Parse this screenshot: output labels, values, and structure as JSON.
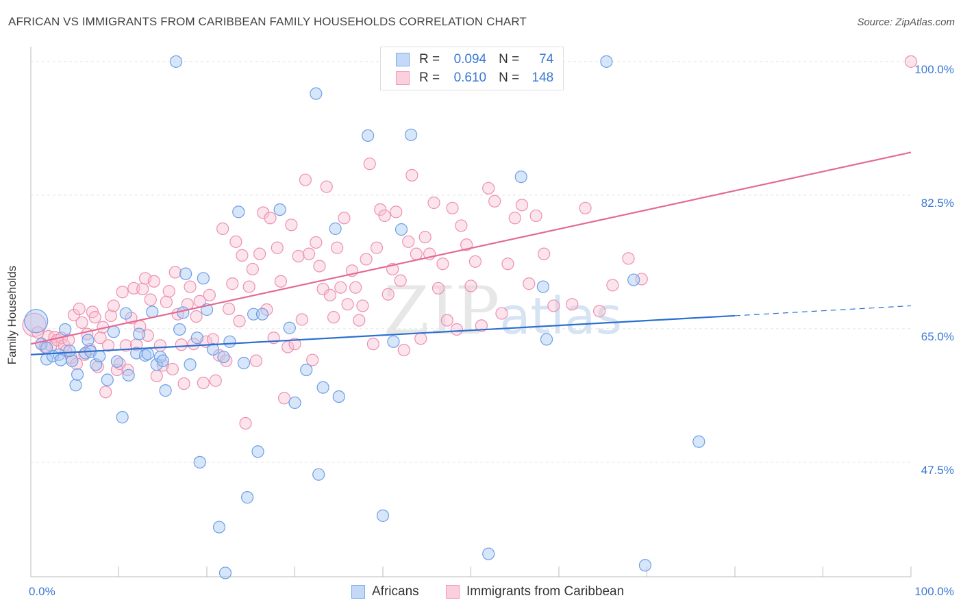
{
  "title": "AFRICAN VS IMMIGRANTS FROM CARIBBEAN FAMILY HOUSEHOLDS CORRELATION CHART",
  "source": "Source: ZipAtlas.com",
  "watermark": {
    "zip": "ZIP",
    "atlas": "atlas"
  },
  "legend": {
    "rows": [
      {
        "r_label": "R =",
        "r_value": "0.094",
        "n_label": "N =",
        "n_value": "74",
        "color": "#7aaaf0"
      },
      {
        "r_label": "R =",
        "r_value": "0.610",
        "n_label": "N =",
        "n_value": "148",
        "color": "#f29ab8"
      }
    ]
  },
  "bottom_legend": [
    {
      "label": "Africans",
      "color": "#7aaaf0"
    },
    {
      "label": "Immigrants from Caribbean",
      "color": "#f29ab8"
    }
  ],
  "colors": {
    "africans_fill": "#a9c8f5",
    "africans_stroke": "#6b9fe6",
    "africans_line": "#2a6fd1",
    "carib_fill": "#f7c3d5",
    "carib_stroke": "#ee8fb0",
    "carib_line": "#e46a93",
    "tick_label": "#3a78d4",
    "grid": "#e3e3e3"
  },
  "chart_data": {
    "type": "scatter",
    "xlabel": "",
    "ylabel": "Family Households",
    "xlim": [
      0,
      100
    ],
    "ylim": [
      32.5,
      102.5
    ],
    "x_tick_labels": [
      {
        "value": 0,
        "label": "0.0%"
      },
      {
        "value": 100,
        "label": "100.0%"
      }
    ],
    "y_tick_labels": [
      {
        "value": 100.0,
        "label": "100.0%"
      },
      {
        "value": 82.5,
        "label": "82.5%"
      },
      {
        "value": 65.0,
        "label": "65.0%"
      },
      {
        "value": 47.5,
        "label": "47.5%"
      }
    ],
    "grid": true,
    "series": [
      {
        "name": "Africans",
        "trend": {
          "x0": 0,
          "y0": 61.6,
          "x1": 80,
          "y1": 66.7,
          "dash_to": 100,
          "dash_y": 68.0
        },
        "points": [
          [
            0.6,
            66.0
          ],
          [
            1.2,
            63.0
          ],
          [
            1.8,
            61.0
          ],
          [
            2.5,
            61.4
          ],
          [
            3.2,
            61.6
          ],
          [
            3.4,
            60.9
          ],
          [
            3.9,
            64.9
          ],
          [
            4.7,
            60.8
          ],
          [
            4.4,
            62.1
          ],
          [
            5.1,
            57.6
          ],
          [
            5.3,
            59.0
          ],
          [
            6.2,
            61.8
          ],
          [
            6.5,
            63.5
          ],
          [
            6.8,
            62.0
          ],
          [
            7.4,
            60.3
          ],
          [
            7.8,
            61.4
          ],
          [
            8.7,
            58.3
          ],
          [
            9.4,
            64.6
          ],
          [
            9.8,
            60.7
          ],
          [
            10.4,
            53.4
          ],
          [
            10.8,
            67.0
          ],
          [
            11.1,
            58.9
          ],
          [
            12.0,
            61.8
          ],
          [
            12.3,
            64.3
          ],
          [
            13.0,
            61.5
          ],
          [
            13.3,
            61.7
          ],
          [
            13.8,
            67.2
          ],
          [
            14.3,
            60.3
          ],
          [
            14.7,
            61.3
          ],
          [
            15.0,
            60.8
          ],
          [
            15.3,
            56.9
          ],
          [
            16.5,
            100.0
          ],
          [
            16.9,
            64.9
          ],
          [
            17.3,
            67.1
          ],
          [
            17.6,
            72.2
          ],
          [
            18.1,
            60.3
          ],
          [
            18.9,
            63.8
          ],
          [
            19.2,
            47.5
          ],
          [
            19.6,
            71.6
          ],
          [
            20.0,
            67.5
          ],
          [
            20.7,
            62.3
          ],
          [
            21.4,
            39.0
          ],
          [
            21.9,
            61.3
          ],
          [
            22.1,
            33.0
          ],
          [
            22.6,
            63.3
          ],
          [
            23.6,
            80.3
          ],
          [
            24.2,
            60.5
          ],
          [
            24.6,
            42.9
          ],
          [
            25.3,
            66.9
          ],
          [
            25.8,
            48.9
          ],
          [
            26.3,
            66.9
          ],
          [
            28.3,
            80.6
          ],
          [
            29.4,
            65.1
          ],
          [
            30.0,
            55.3
          ],
          [
            31.3,
            59.6
          ],
          [
            32.4,
            95.8
          ],
          [
            32.7,
            45.9
          ],
          [
            33.2,
            57.3
          ],
          [
            34.6,
            78.1
          ],
          [
            35.0,
            56.1
          ],
          [
            38.3,
            90.3
          ],
          [
            40.0,
            40.5
          ],
          [
            41.2,
            63.3
          ],
          [
            42.1,
            78.0
          ],
          [
            43.2,
            90.4
          ],
          [
            52.0,
            35.5
          ],
          [
            55.7,
            84.9
          ],
          [
            58.2,
            70.5
          ],
          [
            58.6,
            63.6
          ],
          [
            65.4,
            100.0
          ],
          [
            68.5,
            71.4
          ],
          [
            69.8,
            34.0
          ],
          [
            75.9,
            50.2
          ],
          [
            1.8,
            62.5
          ]
        ]
      },
      {
        "name": "Immigrants from Caribbean",
        "trend": {
          "x0": 0,
          "y0": 63.0,
          "x1": 100,
          "y1": 88.1
        },
        "points": [
          [
            0.4,
            65.5
          ],
          [
            0.8,
            64.5
          ],
          [
            1.2,
            63.0
          ],
          [
            1.6,
            62.6
          ],
          [
            2.0,
            64.0
          ],
          [
            2.3,
            62.8
          ],
          [
            2.7,
            63.9
          ],
          [
            3.0,
            63.5
          ],
          [
            3.5,
            63.8
          ],
          [
            3.8,
            62.8
          ],
          [
            4.0,
            62.1
          ],
          [
            4.3,
            63.5
          ],
          [
            4.6,
            61.2
          ],
          [
            4.9,
            66.8
          ],
          [
            5.2,
            60.4
          ],
          [
            5.5,
            67.6
          ],
          [
            5.8,
            65.8
          ],
          [
            6.1,
            61.6
          ],
          [
            6.4,
            64.3
          ],
          [
            6.7,
            62.3
          ],
          [
            7.0,
            67.2
          ],
          [
            7.3,
            66.5
          ],
          [
            7.6,
            60.0
          ],
          [
            7.9,
            63.8
          ],
          [
            8.2,
            65.2
          ],
          [
            8.5,
            56.7
          ],
          [
            8.8,
            62.8
          ],
          [
            9.1,
            66.7
          ],
          [
            9.4,
            68.0
          ],
          [
            9.8,
            59.6
          ],
          [
            10.1,
            60.4
          ],
          [
            10.4,
            69.8
          ],
          [
            10.8,
            62.8
          ],
          [
            11.0,
            59.6
          ],
          [
            11.4,
            66.4
          ],
          [
            11.7,
            70.3
          ],
          [
            12.0,
            62.9
          ],
          [
            12.4,
            65.3
          ],
          [
            12.7,
            70.2
          ],
          [
            13.0,
            71.6
          ],
          [
            13.3,
            64.1
          ],
          [
            13.6,
            68.8
          ],
          [
            14.0,
            71.2
          ],
          [
            14.3,
            58.8
          ],
          [
            14.7,
            62.8
          ],
          [
            15.0,
            60.2
          ],
          [
            15.4,
            68.5
          ],
          [
            15.7,
            69.9
          ],
          [
            16.1,
            59.7
          ],
          [
            16.4,
            72.4
          ],
          [
            16.7,
            66.9
          ],
          [
            17.1,
            62.9
          ],
          [
            17.4,
            57.8
          ],
          [
            17.8,
            68.2
          ],
          [
            18.1,
            70.5
          ],
          [
            18.5,
            63.0
          ],
          [
            18.8,
            66.6
          ],
          [
            19.2,
            68.6
          ],
          [
            19.6,
            57.9
          ],
          [
            19.9,
            63.3
          ],
          [
            20.3,
            69.4
          ],
          [
            20.7,
            63.6
          ],
          [
            21.0,
            58.2
          ],
          [
            21.4,
            61.5
          ],
          [
            21.8,
            78.1
          ],
          [
            22.2,
            60.8
          ],
          [
            22.5,
            67.6
          ],
          [
            22.9,
            70.9
          ],
          [
            23.3,
            76.4
          ],
          [
            23.7,
            66.0
          ],
          [
            24.0,
            74.6
          ],
          [
            24.4,
            52.6
          ],
          [
            24.8,
            70.5
          ],
          [
            25.2,
            72.8
          ],
          [
            25.6,
            60.8
          ],
          [
            26.0,
            74.8
          ],
          [
            26.4,
            80.2
          ],
          [
            26.8,
            67.5
          ],
          [
            27.2,
            79.5
          ],
          [
            27.6,
            63.8
          ],
          [
            28.0,
            75.6
          ],
          [
            28.4,
            71.2
          ],
          [
            28.8,
            55.9
          ],
          [
            29.2,
            62.6
          ],
          [
            29.6,
            78.6
          ],
          [
            30.0,
            63.0
          ],
          [
            30.4,
            74.5
          ],
          [
            30.8,
            66.2
          ],
          [
            31.2,
            84.5
          ],
          [
            31.6,
            74.8
          ],
          [
            32.0,
            60.9
          ],
          [
            32.4,
            76.3
          ],
          [
            32.8,
            73.2
          ],
          [
            33.2,
            70.2
          ],
          [
            33.6,
            83.6
          ],
          [
            34.0,
            69.4
          ],
          [
            34.4,
            66.5
          ],
          [
            34.8,
            75.6
          ],
          [
            35.2,
            70.4
          ],
          [
            35.6,
            79.5
          ],
          [
            36.0,
            68.2
          ],
          [
            36.5,
            72.6
          ],
          [
            36.9,
            70.4
          ],
          [
            37.3,
            66.1
          ],
          [
            37.7,
            68.0
          ],
          [
            38.1,
            74.1
          ],
          [
            38.5,
            86.6
          ],
          [
            38.9,
            63.0
          ],
          [
            39.3,
            75.6
          ],
          [
            39.7,
            80.6
          ],
          [
            40.2,
            79.8
          ],
          [
            40.6,
            69.5
          ],
          [
            41.1,
            72.8
          ],
          [
            41.5,
            80.3
          ],
          [
            42.0,
            71.3
          ],
          [
            42.4,
            62.2
          ],
          [
            42.9,
            76.4
          ],
          [
            43.3,
            85.1
          ],
          [
            43.8,
            74.8
          ],
          [
            44.3,
            63.7
          ],
          [
            44.8,
            77.0
          ],
          [
            45.3,
            74.8
          ],
          [
            45.8,
            81.5
          ],
          [
            46.3,
            70.3
          ],
          [
            46.8,
            73.5
          ],
          [
            47.3,
            66.1
          ],
          [
            47.9,
            80.8
          ],
          [
            48.4,
            64.9
          ],
          [
            48.9,
            78.5
          ],
          [
            49.5,
            76.0
          ],
          [
            50.0,
            70.6
          ],
          [
            50.5,
            73.8
          ],
          [
            51.2,
            65.4
          ],
          [
            52.0,
            83.4
          ],
          [
            52.7,
            81.7
          ],
          [
            53.5,
            67.0
          ],
          [
            54.2,
            73.5
          ],
          [
            55.0,
            79.5
          ],
          [
            55.8,
            81.2
          ],
          [
            56.6,
            70.9
          ],
          [
            57.4,
            79.8
          ],
          [
            58.3,
            74.8
          ],
          [
            59.4,
            68.0
          ],
          [
            61.5,
            68.2
          ],
          [
            63.0,
            80.8
          ],
          [
            64.6,
            67.3
          ],
          [
            66.1,
            70.7
          ],
          [
            67.9,
            74.2
          ],
          [
            69.4,
            71.5
          ],
          [
            100.0,
            100.0
          ]
        ]
      }
    ]
  }
}
